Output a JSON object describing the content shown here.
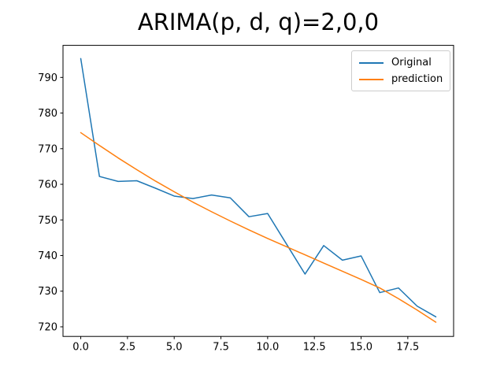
{
  "title": "ARIMA(p, d, q)=2,0,0",
  "chart_data": {
    "type": "line",
    "title": "ARIMA(p, d, q)=2,0,0",
    "xlabel": "",
    "ylabel": "",
    "x": [
      0,
      1,
      2,
      3,
      4,
      5,
      6,
      7,
      8,
      9,
      10,
      11,
      12,
      13,
      14,
      15,
      16,
      17,
      18,
      19
    ],
    "series": [
      {
        "name": "Original",
        "color": "#1f77b4",
        "values": [
          795.3,
          762.2,
          760.8,
          761.0,
          758.9,
          756.7,
          756.0,
          757.0,
          756.2,
          750.9,
          751.8,
          743.3,
          734.8,
          742.8,
          738.7,
          739.9,
          729.6,
          730.9,
          725.8,
          722.8
        ]
      },
      {
        "name": "prediction",
        "color": "#ff7f0e",
        "values": [
          774.5,
          770.9,
          767.4,
          764.1,
          760.9,
          757.9,
          755.0,
          752.3,
          749.7,
          747.2,
          744.8,
          742.5,
          740.2,
          737.9,
          735.6,
          733.3,
          730.9,
          727.9,
          724.7,
          721.3
        ]
      }
    ],
    "xlim": [
      -0.95,
      19.95
    ],
    "ylim": [
      717.3,
      799.0
    ],
    "xticks": [
      0,
      2.5,
      5,
      7.5,
      10,
      12.5,
      15,
      17.5
    ],
    "xtick_labels": [
      "0.0",
      "2.5",
      "5.0",
      "7.5",
      "10.0",
      "12.5",
      "15.0",
      "17.5"
    ],
    "yticks": [
      720,
      730,
      740,
      750,
      760,
      770,
      780,
      790
    ],
    "ytick_labels": [
      "720",
      "730",
      "740",
      "750",
      "760",
      "770",
      "780",
      "790"
    ],
    "grid": false,
    "legend_position": "upper right",
    "axes_color": "#000000",
    "line_width": 1.5
  }
}
